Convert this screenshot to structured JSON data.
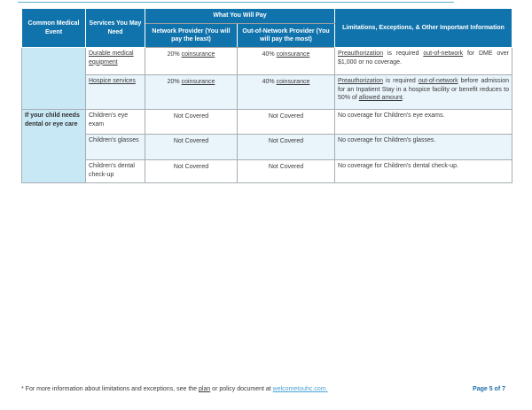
{
  "colors": {
    "header_bg": "#1173AC",
    "category_bg": "#C9E8F5",
    "alt_row_bg": "#E9F4FB",
    "border_gray": "#A6ADB2",
    "link_blue": "#4CA2D5",
    "page_label_blue": "#1D6FA9",
    "top_divider_blue": "#5FAECE"
  },
  "table": {
    "header": {
      "col_event": "Common Medical Event",
      "col_services": "Services You May Need",
      "col_pay": "What You Will Pay",
      "col_network": "Network Provider (You will pay the least)",
      "col_oon": "Out-of-Network Provider (You will pay the most)",
      "col_limitations": "Limitations, Exceptions, & Other Important Information"
    },
    "rows": [
      {
        "event": "",
        "service": [
          {
            "t": "Durable medical equipment",
            "u": true
          }
        ],
        "network": [
          {
            "t": "20% "
          },
          {
            "t": "coinsurance",
            "u": true
          }
        ],
        "oon": [
          {
            "t": "40% "
          },
          {
            "t": "coinsurance",
            "u": true
          }
        ],
        "limitations": [
          {
            "t": "Preauthorization",
            "u": true
          },
          {
            "t": " is required "
          },
          {
            "t": "out-of-network",
            "u": true
          },
          {
            "t": " for DME over $1,000 or no coverage."
          }
        ]
      },
      {
        "service": [
          {
            "t": "Hospice services",
            "u": true
          }
        ],
        "network": [
          {
            "t": "20% "
          },
          {
            "t": "coinsurance",
            "u": true
          }
        ],
        "oon": [
          {
            "t": "40% "
          },
          {
            "t": "coinsurance",
            "u": true
          }
        ],
        "limitations": [
          {
            "t": "Preauthorization",
            "u": true
          },
          {
            "t": " is required "
          },
          {
            "t": "out-of-network",
            "u": true
          },
          {
            "t": " before admission for an Inpatient Stay in a hospice facility or benefit reduces to 50% of "
          },
          {
            "t": "allowed amount",
            "u": true
          },
          {
            "t": "."
          }
        ]
      },
      {
        "event": "If your child needs dental or eye care",
        "service": [
          {
            "t": "Children's eye exam"
          }
        ],
        "network": [
          {
            "t": "Not Covered"
          }
        ],
        "oon": [
          {
            "t": "Not Covered"
          }
        ],
        "limitations": [
          {
            "t": "No coverage for Children's eye exams."
          }
        ]
      },
      {
        "service": [
          {
            "t": "Children's glasses"
          }
        ],
        "network": [
          {
            "t": "Not Covered"
          }
        ],
        "oon": [
          {
            "t": "Not Covered"
          }
        ],
        "limitations": [
          {
            "t": "No coverage for Children's glasses."
          }
        ]
      },
      {
        "service": [
          {
            "t": "Children's dental check-up"
          }
        ],
        "network": [
          {
            "t": "Not Covered"
          }
        ],
        "oon": [
          {
            "t": "Not Covered"
          }
        ],
        "limitations": [
          {
            "t": "No coverage for Children's dental check-up."
          }
        ]
      }
    ]
  },
  "footer": {
    "footnote_segments": [
      {
        "t": "* For more information about limitations and exceptions, see the "
      },
      {
        "t": "plan",
        "u": true
      },
      {
        "t": " or policy document at "
      },
      {
        "t": "welcometouhc.com.",
        "link": true
      }
    ],
    "page_label": "Page 5 of 7"
  }
}
